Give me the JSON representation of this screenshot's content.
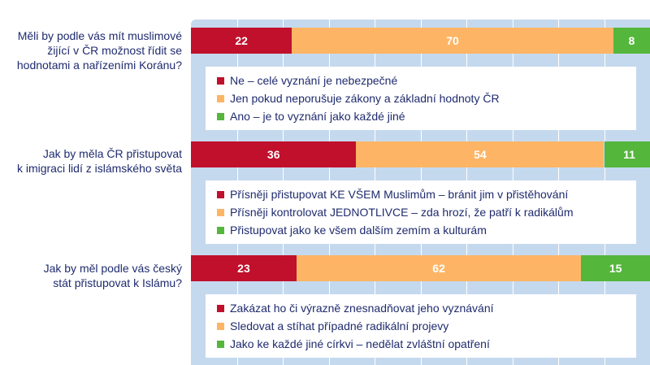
{
  "colors": {
    "red": "#c0102c",
    "orange": "#fdb565",
    "green": "#55b63c",
    "text": "#1f2b6e",
    "panel": "#c5d9ee"
  },
  "chart_data": {
    "type": "bar",
    "stacked": true,
    "orientation": "horizontal",
    "xlim": [
      0,
      100
    ],
    "grid": true,
    "categories": [
      "Měli by podle vás mít muslimové žijící v ČR možnost řídit se hodnotami a nařízeními Koránu?",
      "Jak by měla ČR přistupovat k imigraci lidí z islámského světa",
      "Jak by měl podle vás český stát přistupovat k Islámu?"
    ],
    "groups": [
      {
        "question_lines": [
          "Měli by podle vás mít muslimové",
          "žijící v ČR možnost řídit se",
          "hodnotami a nařízeními Koránu?"
        ],
        "values": [
          22,
          70,
          8
        ],
        "legend": [
          "Ne – celé vyznání je nebezpečné",
          "Jen pokud neporušuje zákony a základní hodnoty ČR",
          "Ano – je to vyznání jako každé jiné"
        ]
      },
      {
        "question_lines": [
          "Jak by měla ČR přistupovat",
          "k imigraci lidí z islámského světa"
        ],
        "values": [
          36,
          54,
          11
        ],
        "legend": [
          "Přísněji přistupovat KE VŠEM Muslimům – bránit jim v přistěhování",
          "Přísněji kontrolovat JEDNOTLIVCE –  zda hrozí, že patří k radikálům",
          "Přistupovat jako ke všem dalším zemím a kulturám"
        ]
      },
      {
        "question_lines": [
          "Jak by měl podle vás český",
          "stát přistupovat k Islámu?"
        ],
        "values": [
          23,
          62,
          15
        ],
        "legend": [
          "Zakázat ho či výrazně znesnadňovat jeho vyznávání",
          "Sledovat a stíhat případné radikální projevy",
          "Jako ke každé jiné církvi – nedělat zvláštní opatření"
        ]
      }
    ]
  }
}
